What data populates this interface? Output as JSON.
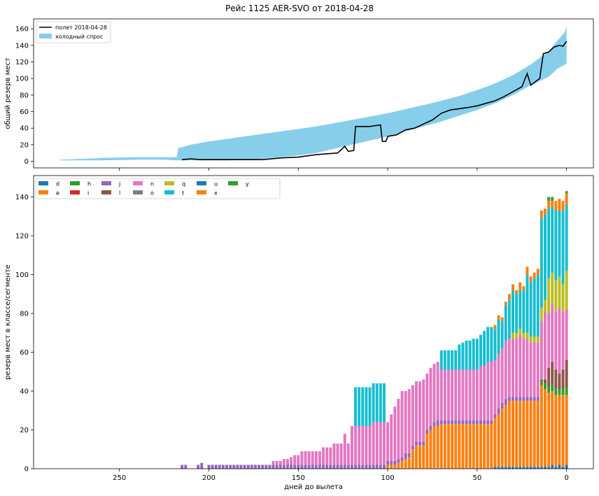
{
  "figure": {
    "suptitle": "Рейс 1125 AER-SVO от 2018-04-28"
  },
  "chart_data": [
    {
      "type": "area",
      "ylabel": "общий резерв мест",
      "xlim": [
        298,
        -15
      ],
      "ylim": [
        -8,
        172
      ],
      "xticks": [
        250,
        200,
        150,
        100,
        50,
        0
      ],
      "yticks": [
        0,
        20,
        40,
        60,
        80,
        100,
        120,
        140,
        160
      ],
      "x_axis_inverted": true,
      "legend_position": "upper left",
      "series": [
        {
          "name": "полет 2018-04-28",
          "kind": "line",
          "color": "#000000",
          "points": [
            [
              215,
              2
            ],
            [
              210,
              3
            ],
            [
              205,
              2
            ],
            [
              170,
              2
            ],
            [
              160,
              4
            ],
            [
              150,
              5
            ],
            [
              140,
              8
            ],
            [
              128,
              10
            ],
            [
              124,
              18
            ],
            [
              122,
              12
            ],
            [
              119,
              13
            ],
            [
              118,
              42
            ],
            [
              110,
              42
            ],
            [
              104,
              44
            ],
            [
              103,
              24
            ],
            [
              101,
              24
            ],
            [
              100,
              30
            ],
            [
              95,
              32
            ],
            [
              90,
              38
            ],
            [
              85,
              40
            ],
            [
              80,
              45
            ],
            [
              75,
              50
            ],
            [
              70,
              58
            ],
            [
              65,
              62
            ],
            [
              55,
              65
            ],
            [
              50,
              67
            ],
            [
              45,
              70
            ],
            [
              40,
              73
            ],
            [
              35,
              78
            ],
            [
              30,
              84
            ],
            [
              25,
              90
            ],
            [
              22,
              106
            ],
            [
              20,
              92
            ],
            [
              15,
              100
            ],
            [
              13,
              130
            ],
            [
              10,
              132
            ],
            [
              7,
              138
            ],
            [
              4,
              140
            ],
            [
              2,
              139
            ],
            [
              0,
              145
            ]
          ]
        },
        {
          "name": "холодный спрос",
          "kind": "band",
          "color": "#87ceeb",
          "upper": [
            [
              283,
              2
            ],
            [
              270,
              3
            ],
            [
              260,
              4
            ],
            [
              240,
              5
            ],
            [
              225,
              5
            ],
            [
              218,
              5
            ],
            [
              217,
              16
            ],
            [
              210,
              20
            ],
            [
              200,
              24
            ],
            [
              190,
              27
            ],
            [
              180,
              30
            ],
            [
              170,
              33
            ],
            [
              160,
              36
            ],
            [
              150,
              39
            ],
            [
              140,
              42
            ],
            [
              130,
              46
            ],
            [
              120,
              50
            ],
            [
              110,
              54
            ],
            [
              100,
              58
            ],
            [
              90,
              63
            ],
            [
              80,
              68
            ],
            [
              70,
              73
            ],
            [
              60,
              79
            ],
            [
              50,
              86
            ],
            [
              40,
              94
            ],
            [
              30,
              104
            ],
            [
              20,
              117
            ],
            [
              10,
              133
            ],
            [
              5,
              146
            ],
            [
              1,
              156
            ],
            [
              0,
              163
            ]
          ],
          "lower": [
            [
              0,
              118
            ],
            [
              5,
              112
            ],
            [
              10,
              102
            ],
            [
              20,
              92
            ],
            [
              30,
              80
            ],
            [
              40,
              70
            ],
            [
              50,
              62
            ],
            [
              60,
              55
            ],
            [
              70,
              48
            ],
            [
              80,
              42
            ],
            [
              90,
              36
            ],
            [
              100,
              30
            ],
            [
              110,
              25
            ],
            [
              120,
              20
            ],
            [
              130,
              15
            ],
            [
              140,
              10
            ],
            [
              150,
              7
            ],
            [
              160,
              5
            ],
            [
              170,
              3
            ],
            [
              180,
              2
            ],
            [
              190,
              1
            ],
            [
              200,
              1
            ],
            [
              210,
              1
            ],
            [
              218,
              1
            ],
            [
              225,
              2
            ],
            [
              240,
              2
            ],
            [
              260,
              1
            ],
            [
              283,
              1
            ]
          ]
        }
      ]
    },
    {
      "type": "bar",
      "xlabel": "дней до вылета",
      "ylabel": "резерв мест в классе/сегменте",
      "xlim": [
        298,
        -15
      ],
      "ylim": [
        0,
        151
      ],
      "xticks": [
        250,
        200,
        150,
        100,
        50,
        0
      ],
      "yticks": [
        0,
        20,
        40,
        60,
        80,
        100,
        120,
        140
      ],
      "x_axis_inverted": true,
      "stacked": true,
      "legend_position": "upper left",
      "legend_columns": 9,
      "series_names": [
        "d",
        "e",
        "h",
        "i",
        "j",
        "l",
        "n",
        "o",
        "q",
        "t",
        "u",
        "x",
        "y"
      ],
      "series_colors": {
        "d": "#1f77b4",
        "e": "#ff7f0e",
        "h": "#2ca02c",
        "i": "#d62728",
        "j": "#9467bd",
        "l": "#8c564b",
        "n": "#e377c2",
        "o": "#7f7f7f",
        "q": "#bcbd22",
        "t": "#17becf",
        "u": "#1f77b4",
        "x": "#ff7f0e",
        "y": "#2ca02c"
      },
      "series_order_bottom_to_top": [
        "d",
        "e",
        "j",
        "h",
        "l",
        "n",
        "q",
        "t",
        "x",
        "y"
      ],
      "bars": [
        {
          "x": 215,
          "j": 2
        },
        {
          "x": 213,
          "j": 2
        },
        {
          "x": 206,
          "j": 2
        },
        {
          "x": 204,
          "j": 3
        },
        {
          "x": 200,
          "j": 2
        },
        {
          "x": 198,
          "j": 2
        },
        {
          "x": 196,
          "j": 2
        },
        {
          "x": 194,
          "j": 2
        },
        {
          "x": 192,
          "j": 2
        },
        {
          "x": 190,
          "j": 2
        },
        {
          "x": 188,
          "j": 2
        },
        {
          "x": 186,
          "j": 2
        },
        {
          "x": 184,
          "j": 2
        },
        {
          "x": 182,
          "j": 2
        },
        {
          "x": 180,
          "j": 2
        },
        {
          "x": 178,
          "j": 2
        },
        {
          "x": 176,
          "j": 2
        },
        {
          "x": 174,
          "j": 2
        },
        {
          "x": 172,
          "j": 2
        },
        {
          "x": 170,
          "j": 2
        },
        {
          "x": 168,
          "j": 2
        },
        {
          "x": 166,
          "j": 2
        },
        {
          "x": 164,
          "j": 2,
          "n": 2
        },
        {
          "x": 162,
          "j": 2,
          "n": 2
        },
        {
          "x": 160,
          "j": 2,
          "n": 2
        },
        {
          "x": 158,
          "j": 2,
          "n": 3
        },
        {
          "x": 156,
          "j": 2,
          "n": 3
        },
        {
          "x": 154,
          "j": 2,
          "n": 4
        },
        {
          "x": 152,
          "j": 2,
          "n": 5
        },
        {
          "x": 150,
          "j": 2,
          "n": 5
        },
        {
          "x": 148,
          "j": 2,
          "n": 7
        },
        {
          "x": 146,
          "j": 2,
          "n": 7
        },
        {
          "x": 144,
          "j": 2,
          "n": 7
        },
        {
          "x": 142,
          "j": 2,
          "n": 7
        },
        {
          "x": 140,
          "j": 2,
          "n": 7
        },
        {
          "x": 138,
          "j": 2,
          "n": 7
        },
        {
          "x": 136,
          "j": 2,
          "n": 9
        },
        {
          "x": 134,
          "j": 2,
          "n": 9
        },
        {
          "x": 132,
          "j": 2,
          "n": 9
        },
        {
          "x": 130,
          "j": 2,
          "n": 11
        },
        {
          "x": 128,
          "j": 2,
          "n": 11
        },
        {
          "x": 126,
          "j": 2,
          "n": 11
        },
        {
          "x": 124,
          "j": 2,
          "n": 16
        },
        {
          "x": 122,
          "j": 2,
          "n": 11
        },
        {
          "x": 120,
          "j": 2,
          "n": 20
        },
        {
          "x": 118,
          "j": 2,
          "n": 20,
          "t": 20
        },
        {
          "x": 116,
          "j": 2,
          "n": 20,
          "t": 20
        },
        {
          "x": 114,
          "j": 2,
          "n": 20,
          "t": 20
        },
        {
          "x": 112,
          "j": 2,
          "n": 20,
          "t": 20
        },
        {
          "x": 110,
          "j": 2,
          "n": 20,
          "t": 20
        },
        {
          "x": 108,
          "j": 2,
          "n": 22,
          "t": 20
        },
        {
          "x": 106,
          "j": 2,
          "n": 22,
          "t": 20
        },
        {
          "x": 104,
          "j": 2,
          "n": 22,
          "t": 20
        },
        {
          "x": 102,
          "j": 2,
          "n": 22,
          "t": 20
        },
        {
          "x": 100,
          "e": 2,
          "j": 2,
          "n": 20
        },
        {
          "x": 98,
          "e": 2,
          "j": 2,
          "n": 24
        },
        {
          "x": 96,
          "e": 2,
          "j": 2,
          "n": 28
        },
        {
          "x": 94,
          "e": 3,
          "j": 2,
          "n": 31
        },
        {
          "x": 92,
          "e": 4,
          "j": 2,
          "n": 34
        },
        {
          "x": 90,
          "e": 5,
          "j": 3,
          "n": 32
        },
        {
          "x": 88,
          "e": 6,
          "j": 2,
          "n": 33
        },
        {
          "x": 86,
          "e": 10,
          "j": 2,
          "n": 31
        },
        {
          "x": 84,
          "e": 12,
          "j": 2,
          "n": 31
        },
        {
          "x": 82,
          "e": 12,
          "j": 2,
          "n": 31
        },
        {
          "x": 80,
          "e": 12,
          "j": 2,
          "n": 32
        },
        {
          "x": 78,
          "e": 18,
          "j": 2,
          "n": 29
        },
        {
          "x": 76,
          "e": 20,
          "j": 2,
          "n": 30
        },
        {
          "x": 74,
          "e": 22,
          "j": 2,
          "n": 30
        },
        {
          "x": 72,
          "e": 22,
          "j": 3,
          "n": 30
        },
        {
          "x": 70,
          "e": 23,
          "j": 2,
          "n": 26,
          "t": 10
        },
        {
          "x": 68,
          "e": 23,
          "j": 2,
          "n": 26,
          "t": 10
        },
        {
          "x": 66,
          "e": 23,
          "j": 2,
          "n": 26,
          "t": 10
        },
        {
          "x": 64,
          "e": 23,
          "j": 2,
          "n": 26,
          "t": 10
        },
        {
          "x": 62,
          "e": 23,
          "j": 2,
          "n": 26,
          "t": 10
        },
        {
          "x": 60,
          "e": 23,
          "j": 2,
          "n": 26,
          "t": 13
        },
        {
          "x": 58,
          "e": 23,
          "j": 2,
          "n": 26,
          "t": 14
        },
        {
          "x": 56,
          "e": 23,
          "j": 2,
          "n": 26,
          "t": 15
        },
        {
          "x": 54,
          "e": 23,
          "j": 2,
          "n": 26,
          "t": 15
        },
        {
          "x": 52,
          "e": 23,
          "j": 2,
          "n": 26,
          "t": 16
        },
        {
          "x": 50,
          "e": 23,
          "j": 2,
          "n": 26,
          "t": 16
        },
        {
          "x": 48,
          "e": 23,
          "j": 2,
          "n": 28,
          "t": 16
        },
        {
          "x": 46,
          "e": 23,
          "j": 2,
          "n": 28,
          "t": 18
        },
        {
          "x": 44,
          "e": 23,
          "j": 2,
          "n": 30,
          "t": 18
        },
        {
          "x": 42,
          "e": 23,
          "j": 2,
          "n": 30,
          "t": 18
        },
        {
          "x": 40,
          "d": 1,
          "e": 25,
          "j": 2,
          "n": 28,
          "t": 16,
          "x_": 2
        },
        {
          "x": 38,
          "d": 1,
          "e": 27,
          "j": 3,
          "n": 28,
          "t": 18,
          "x_": 2
        },
        {
          "x": 36,
          "d": 1,
          "e": 30,
          "j": 3,
          "n": 28,
          "t": 14,
          "x_": 2
        },
        {
          "x": 34,
          "d": 1,
          "e": 32,
          "j": 3,
          "n": 30,
          "t": 18,
          "x_": 2
        },
        {
          "x": 32,
          "d": 1,
          "e": 34,
          "j": 2,
          "n": 30,
          "t": 20,
          "x_": 3
        },
        {
          "x": 30,
          "d": 1,
          "e": 34,
          "j": 2,
          "n": 30,
          "q": 3,
          "t": 22,
          "x_": 3
        },
        {
          "x": 28,
          "d": 1,
          "e": 34,
          "j": 2,
          "n": 30,
          "q": 3,
          "t": 20,
          "x_": 2
        },
        {
          "x": 26,
          "d": 1,
          "e": 34,
          "j": 2,
          "n": 32,
          "q": 3,
          "t": 20,
          "x_": 4
        },
        {
          "x": 24,
          "d": 1,
          "e": 34,
          "j": 2,
          "n": 30,
          "q": 3,
          "t": 22,
          "x_": 2
        },
        {
          "x": 22,
          "d": 1,
          "e": 34,
          "j": 2,
          "n": 30,
          "q": 3,
          "t": 30,
          "x_": 4
        },
        {
          "x": 20,
          "d": 1,
          "e": 34,
          "j": 2,
          "n": 28,
          "q": 3,
          "t": 28,
          "x_": 3
        },
        {
          "x": 18,
          "d": 1,
          "e": 34,
          "j": 2,
          "n": 28,
          "q": 3,
          "t": 30,
          "x_": 3
        },
        {
          "x": 16,
          "d": 1,
          "e": 34,
          "j": 2,
          "n": 28,
          "q": 3,
          "t": 32,
          "x_": 3
        },
        {
          "x": 14,
          "d": 1,
          "e": 42,
          "h": 2,
          "l": 1,
          "n": 30,
          "q": 7,
          "t": 46,
          "x_": 4
        },
        {
          "x": 12,
          "d": 1,
          "e": 40,
          "h": 3,
          "l": 2,
          "n": 35,
          "q": 6,
          "t": 44,
          "x_": 3
        },
        {
          "x": 10,
          "d": 1,
          "e": 38,
          "h": 3,
          "l": 10,
          "n": 28,
          "q": 18,
          "t": 36,
          "x_": 4,
          "y": 2
        },
        {
          "x": 8,
          "d": 2,
          "e": 38,
          "h": 3,
          "l": 12,
          "n": 30,
          "q": 16,
          "t": 34,
          "x_": 3,
          "y": 2
        },
        {
          "x": 6,
          "d": 1,
          "e": 37,
          "h": 3,
          "l": 10,
          "n": 30,
          "q": 16,
          "t": 36,
          "x_": 5
        },
        {
          "x": 4,
          "d": 2,
          "e": 36,
          "h": 3,
          "l": 8,
          "n": 34,
          "q": 16,
          "t": 34,
          "x_": 6
        },
        {
          "x": 2,
          "d": 1,
          "e": 37,
          "h": 3,
          "l": 10,
          "n": 30,
          "q": 14,
          "t": 38,
          "x_": 5
        },
        {
          "x": 0,
          "d": 2,
          "e": 36,
          "h": 4,
          "l": 14,
          "n": 26,
          "q": 20,
          "t": 34,
          "x_": 6,
          "y": 1
        }
      ]
    }
  ]
}
